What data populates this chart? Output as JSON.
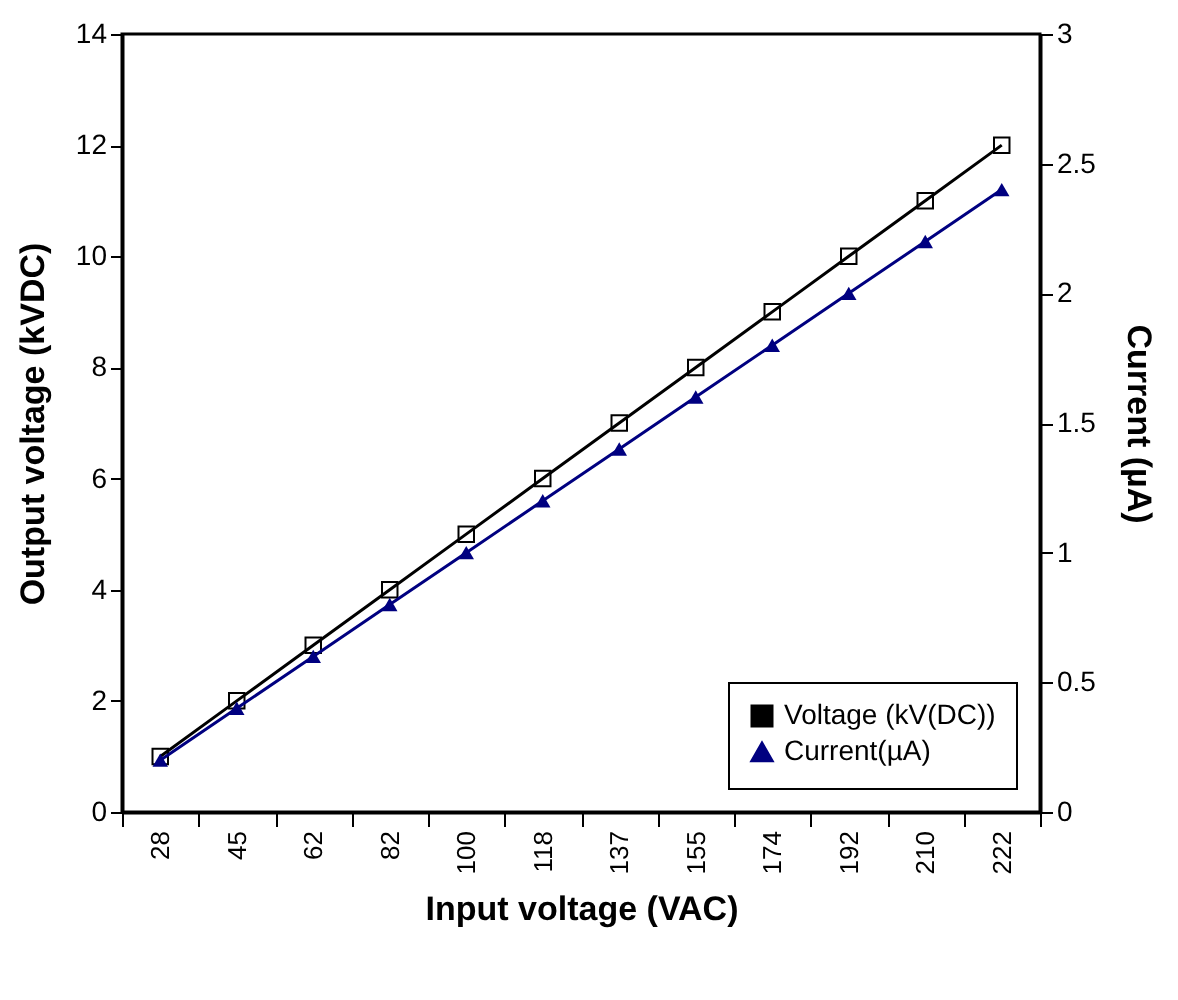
{
  "chart_data": {
    "type": "line",
    "xlabel": "Input voltage (VAC)",
    "ylabel": "Output voltage (kVDC)",
    "y2label": "Current (µA)",
    "categories": [
      "28",
      "45",
      "62",
      "82",
      "100",
      "118",
      "137",
      "155",
      "174",
      "192",
      "210",
      "222"
    ],
    "series": [
      {
        "name": "Voltage (kV(DC))",
        "color": "#000000",
        "marker": "square",
        "values": [
          1,
          2,
          3,
          4,
          5,
          6,
          7,
          8,
          9,
          10,
          11,
          12
        ]
      },
      {
        "name": "Current(µA)",
        "color": "#000080",
        "marker": "triangle",
        "axis": "y2",
        "values": [
          0.2,
          0.4,
          0.6,
          0.8,
          1.0,
          1.2,
          1.4,
          1.6,
          1.8,
          2.0,
          2.2,
          2.4
        ]
      }
    ],
    "ylim": [
      0,
      14
    ],
    "yticks": [
      0,
      2,
      4,
      6,
      8,
      10,
      12,
      14
    ],
    "y2lim": [
      0,
      3
    ],
    "y2ticks": [
      0,
      0.5,
      1,
      1.5,
      2,
      2.5,
      3
    ],
    "legend": "bottom right",
    "grid": false
  }
}
